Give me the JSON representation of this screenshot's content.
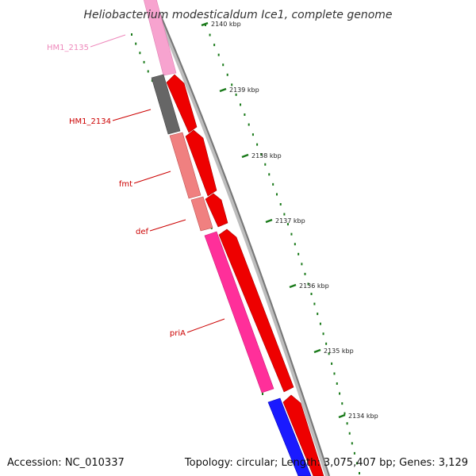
{
  "title": "Heliobacterium modesticaldum Ice1, complete genome",
  "accession": "Accession: NC_010337",
  "topology": "Topology: circular; Length: 3,075,407 bp; Genes: 3,129",
  "colors": {
    "backbone": "#888888",
    "tick": "#1a7a1a",
    "gene_red": "#ee0000",
    "label_red": "#cc0000",
    "label_pink": "#ee88bb"
  },
  "ticks": [
    {
      "label": "2140 kbp"
    },
    {
      "label": "2139 kbp"
    },
    {
      "label": "2138 kbp"
    },
    {
      "label": "2137 kbp"
    },
    {
      "label": "2136 kbp"
    },
    {
      "label": "2135 kbp"
    },
    {
      "label": "2134 kbp"
    }
  ],
  "gene_labels": [
    {
      "text": "HM1_2135",
      "color": "#ee88bb"
    },
    {
      "text": "HM1_2134",
      "color": "#cc0000"
    },
    {
      "text": "fmt",
      "color": "#cc0000"
    },
    {
      "text": "def",
      "color": "#cc0000"
    },
    {
      "text": "priA",
      "color": "#cc0000"
    }
  ]
}
